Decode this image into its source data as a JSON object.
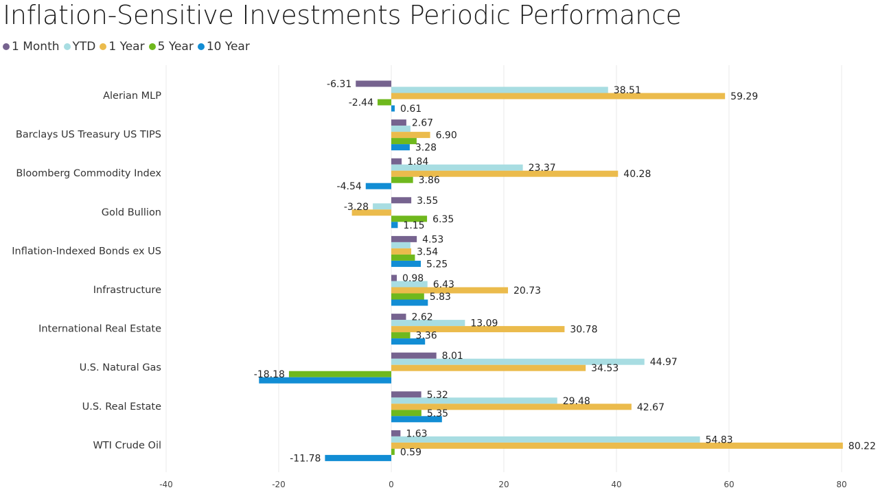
{
  "title": "Inflation-Sensitive Investments Periodic Performance",
  "chart_data": {
    "type": "bar",
    "orientation": "horizontal",
    "title": "Inflation-Sensitive Investments Periodic Performance",
    "xlabel": "",
    "ylabel": "",
    "xlim": [
      -40,
      80
    ],
    "x_ticks": [
      "-40",
      "-20",
      "0",
      "20",
      "40",
      "60",
      "80"
    ],
    "grid": true,
    "legend_position": "top-left",
    "categories": [
      "Alerian MLP",
      "Barclays US Treasury US TIPS",
      "Bloomberg Commodity Index",
      "Gold Bullion",
      "Inflation-Indexed Bonds ex US",
      "Infrastructure",
      "International Real Estate",
      "U.S. Natural Gas",
      "U.S. Real Estate",
      "WTI Crude Oil"
    ],
    "series": [
      {
        "name": "1 Month",
        "color": "#76638f",
        "values": [
          -6.31,
          2.67,
          1.84,
          3.55,
          4.53,
          0.98,
          2.62,
          8.01,
          5.32,
          1.63
        ],
        "labels": [
          "-6.31",
          "2.67",
          "1.84",
          "3.55",
          "4.53",
          "0.98",
          "2.62",
          "8.01",
          "5.32",
          "1.63"
        ]
      },
      {
        "name": "YTD",
        "color": "#a8dde2",
        "values": [
          38.51,
          3.4,
          23.37,
          -3.28,
          3.4,
          6.43,
          13.09,
          44.97,
          29.48,
          54.83
        ],
        "labels": [
          "38.51",
          "",
          "23.37",
          "-3.28",
          "",
          "6.43",
          "13.09",
          "44.97",
          "29.48",
          "54.83"
        ]
      },
      {
        "name": "1 Year",
        "color": "#ebbb4c",
        "values": [
          59.29,
          6.9,
          40.28,
          -7.0,
          3.54,
          20.73,
          30.78,
          34.53,
          42.67,
          80.22
        ],
        "labels": [
          "59.29",
          "6.90",
          "40.28",
          "",
          "3.54",
          "20.73",
          "30.78",
          "34.53",
          "42.67",
          "80.22"
        ]
      },
      {
        "name": "5 Year",
        "color": "#6fb81d",
        "values": [
          -2.44,
          4.5,
          3.86,
          6.35,
          4.2,
          5.83,
          3.36,
          -18.18,
          5.35,
          0.59
        ],
        "labels": [
          "-2.44",
          "",
          "3.86",
          "6.35",
          "",
          "5.83",
          "3.36",
          "-18.18",
          "5.35",
          "0.59"
        ]
      },
      {
        "name": "10 Year",
        "color": "#128dd4",
        "values": [
          0.61,
          3.28,
          -4.54,
          1.15,
          5.25,
          6.5,
          6.0,
          -23.5,
          9.0,
          -11.78
        ],
        "labels": [
          "0.61",
          "3.28",
          "-4.54",
          "1.15",
          "5.25",
          "",
          "",
          "",
          "",
          "-11.78"
        ]
      }
    ]
  }
}
